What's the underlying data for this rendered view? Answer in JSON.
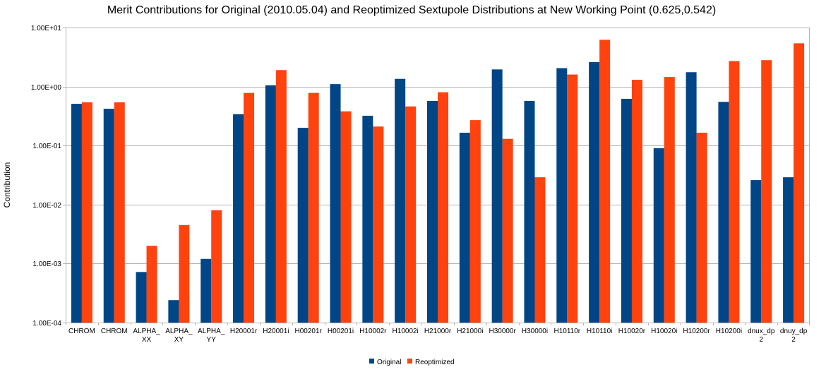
{
  "chart_data": {
    "type": "bar",
    "title": "Merit Contributions for Original (2010.05.04) and Reoptimized Sextupole Distributions at New Working Point (0.625,0.542)",
    "xlabel": "",
    "ylabel": "Contribution",
    "yscale": "log",
    "ylim": [
      0.0001,
      10
    ],
    "yticks": [
      0.0001,
      0.001,
      0.01,
      0.1,
      1,
      10
    ],
    "ytick_labels": [
      "1.00E-04",
      "1.00E-03",
      "1.00E-02",
      "1.00E-01",
      "1.00E+00",
      "1.00E+01"
    ],
    "grid": "horizontal",
    "legend_position": "bottom",
    "categories": [
      [
        "CHROM"
      ],
      [
        "CHROM"
      ],
      [
        "ALPHA_",
        "XX"
      ],
      [
        "ALPHA_",
        "XY"
      ],
      [
        "ALPHA_",
        "YY"
      ],
      [
        "H20001r"
      ],
      [
        "H20001i"
      ],
      [
        "H00201r"
      ],
      [
        "H00201i"
      ],
      [
        "H10002r"
      ],
      [
        "H10002i"
      ],
      [
        "H21000r"
      ],
      [
        "H21000i"
      ],
      [
        "H30000r"
      ],
      [
        "H30000i"
      ],
      [
        "H10110r"
      ],
      [
        "H10110i"
      ],
      [
        "H10020r"
      ],
      [
        "H10020i"
      ],
      [
        "H10200r"
      ],
      [
        "H10200i"
      ],
      [
        "dnux_dp",
        "2"
      ],
      [
        "dnuy_dp",
        "2"
      ]
    ],
    "series": [
      {
        "name": "Original",
        "color": "#004586",
        "values": [
          0.51,
          0.42,
          0.00072,
          0.00024,
          0.0012,
          0.34,
          1.05,
          0.2,
          1.1,
          0.32,
          1.35,
          0.57,
          0.165,
          1.95,
          0.57,
          2.05,
          2.6,
          0.62,
          0.09,
          1.75,
          0.55,
          0.026,
          0.029
        ]
      },
      {
        "name": "Reoptimized",
        "color": "#ff420e",
        "values": [
          0.54,
          0.54,
          0.002,
          0.0045,
          0.008,
          0.78,
          1.9,
          0.78,
          0.38,
          0.21,
          0.46,
          0.8,
          0.27,
          0.13,
          0.029,
          1.6,
          6.2,
          1.3,
          1.45,
          0.165,
          2.7,
          2.8,
          5.4
        ]
      }
    ]
  }
}
